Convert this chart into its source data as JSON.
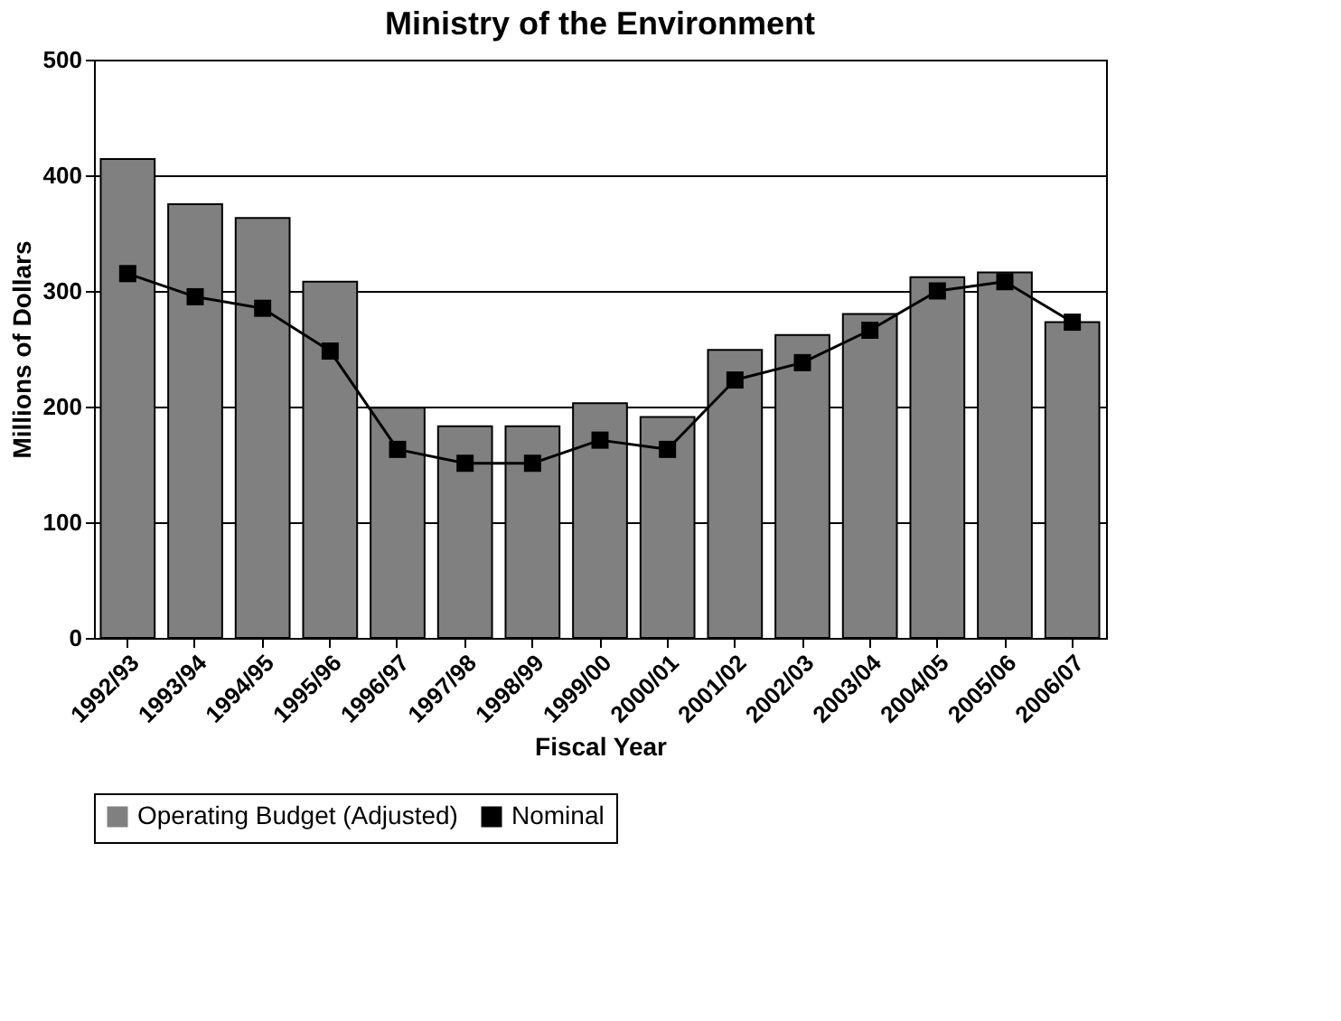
{
  "chart_data": {
    "type": "bar",
    "title": "Ministry of the Environment",
    "xlabel": "Fiscal Year",
    "ylabel": "Millions of Dollars",
    "categories": [
      "1992/93",
      "1993/94",
      "1994/95",
      "1995/96",
      "1996/97",
      "1997/98",
      "1998/99",
      "1999/00",
      "2000/01",
      "2001/02",
      "2002/03",
      "2003/04",
      "2004/05",
      "2005/06",
      "2006/07"
    ],
    "series": [
      {
        "name": "Operating Budget (Adjusted)",
        "color": "#808080",
        "values": [
          414,
          375,
          363,
          308,
          199,
          183,
          183,
          203,
          191,
          249,
          262,
          280,
          312,
          316,
          273
        ]
      },
      {
        "name": "Nominal",
        "type": "line",
        "color": "#000000",
        "marker": "square",
        "values": [
          315,
          295,
          285,
          248,
          163,
          151,
          151,
          171,
          163,
          223,
          238,
          266,
          300,
          308,
          273
        ]
      }
    ],
    "ylim": [
      0,
      500
    ],
    "yticks": [
      0,
      100,
      200,
      300,
      400,
      500
    ],
    "grid": "y",
    "legend": "bottom"
  }
}
